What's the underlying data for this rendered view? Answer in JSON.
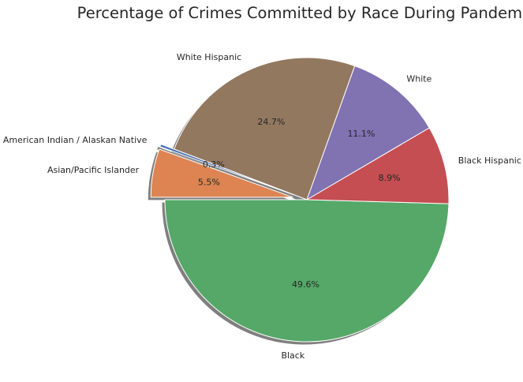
{
  "chart_data": {
    "type": "pie",
    "title": "Percentage of Crimes Committed by Race During Pandemic",
    "slices": [
      {
        "label": "Black",
        "value": 49.6,
        "pct_label": "49.6%",
        "color": "#55a868",
        "explode": false
      },
      {
        "label": "Black Hispanic",
        "value": 8.9,
        "pct_label": "8.9%",
        "color": "#c44e52",
        "explode": false
      },
      {
        "label": "White",
        "value": 11.1,
        "pct_label": "11.1%",
        "color": "#8172b2",
        "explode": false
      },
      {
        "label": "White Hispanic",
        "value": 24.7,
        "pct_label": "24.7%",
        "color": "#937860",
        "explode": false
      },
      {
        "label": "American Indian / Alaskan Native",
        "value": 0.3,
        "pct_label": "0.3%",
        "color": "#4c72b0",
        "explode": true
      },
      {
        "label": "Asian/Pacific Islander",
        "value": 5.5,
        "pct_label": "5.5%",
        "color": "#dd8452",
        "explode": true
      }
    ],
    "start_angle_deg": 180,
    "direction": "counterclockwise",
    "shadow": true
  }
}
